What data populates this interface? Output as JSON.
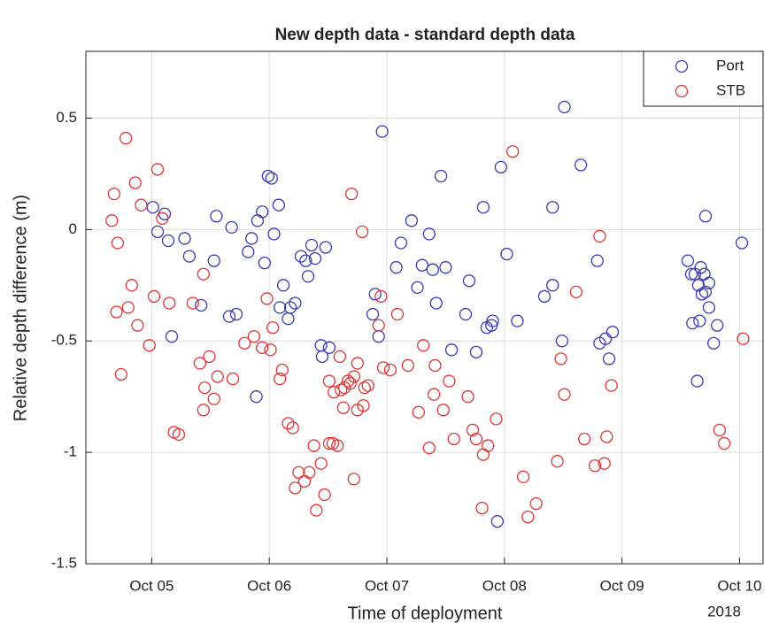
{
  "chart_data": {
    "type": "scatter",
    "title": "New depth data - standard depth data",
    "xlabel": "Time of deployment",
    "ylabel": "Relative depth difference (m)",
    "x_year_label": "2018",
    "xlim": [
      4.44,
      10.2
    ],
    "ylim": [
      -1.5,
      0.8
    ],
    "xticks": [
      {
        "value": 5,
        "label": "Oct 05"
      },
      {
        "value": 6,
        "label": "Oct 06"
      },
      {
        "value": 7,
        "label": "Oct 07"
      },
      {
        "value": 8,
        "label": "Oct 08"
      },
      {
        "value": 9,
        "label": "Oct 09"
      },
      {
        "value": 10,
        "label": "Oct 10"
      }
    ],
    "yticks": [
      0.5,
      0,
      -0.5,
      -1,
      -1.5
    ],
    "grid": true,
    "legend": "northeast",
    "marker": "open-circle",
    "series": [
      {
        "name": "Port",
        "color": "#3a3ab4",
        "x": [
          5.01,
          5.11,
          5.05,
          5.14,
          5.28,
          5.32,
          5.17,
          5.42,
          5.53,
          5.55,
          5.68,
          5.66,
          5.72,
          5.82,
          5.85,
          5.9,
          5.94,
          5.96,
          5.99,
          6.02,
          6.04,
          6.08,
          6.12,
          6.09,
          6.16,
          6.18,
          6.22,
          6.27,
          6.31,
          6.36,
          6.33,
          6.39,
          6.44,
          6.45,
          6.51,
          6.48,
          6.9,
          6.88,
          6.93,
          6.96,
          7.08,
          7.12,
          7.21,
          7.26,
          7.3,
          7.36,
          7.39,
          7.42,
          7.46,
          7.5,
          7.55,
          7.7,
          7.67,
          7.76,
          7.82,
          7.85,
          7.89,
          7.9,
          7.97,
          8.02,
          8.11,
          7.94,
          8.41,
          8.41,
          8.49,
          8.51,
          8.34,
          8.65,
          8.79,
          8.81,
          8.86,
          8.89,
          8.92,
          9.56,
          9.59,
          9.62,
          9.67,
          9.7,
          9.65,
          9.68,
          9.71,
          9.74,
          9.74,
          9.71,
          9.6,
          9.66,
          9.81,
          9.78,
          9.64,
          10.02,
          5.89
        ],
        "values": [
          0.1,
          0.07,
          -0.01,
          -0.05,
          -0.04,
          -0.12,
          -0.48,
          -0.34,
          -0.14,
          0.06,
          0.01,
          -0.39,
          -0.38,
          -0.1,
          -0.04,
          0.04,
          0.08,
          -0.15,
          0.24,
          0.23,
          -0.02,
          0.11,
          -0.25,
          -0.35,
          -0.4,
          -0.35,
          -0.33,
          -0.12,
          -0.14,
          -0.07,
          -0.21,
          -0.13,
          -0.52,
          -0.57,
          -0.53,
          -0.08,
          -0.29,
          -0.38,
          -0.48,
          0.44,
          -0.17,
          -0.06,
          0.04,
          -0.26,
          -0.16,
          -0.02,
          -0.18,
          -0.33,
          0.24,
          -0.17,
          -0.54,
          -0.23,
          -0.38,
          -0.55,
          0.1,
          -0.44,
          -0.43,
          -0.41,
          0.28,
          -0.11,
          -0.41,
          -1.31,
          0.1,
          -0.25,
          -0.5,
          0.55,
          -0.3,
          0.29,
          -0.14,
          -0.51,
          -0.49,
          -0.58,
          -0.46,
          -0.14,
          -0.2,
          -0.2,
          -0.17,
          -0.2,
          -0.25,
          -0.29,
          -0.28,
          -0.24,
          -0.35,
          0.06,
          -0.42,
          -0.41,
          -0.43,
          -0.51,
          -0.68,
          -0.06,
          -0.75
        ]
      },
      {
        "name": "STB",
        "color": "#e03434",
        "x": [
          4.68,
          4.66,
          4.71,
          4.78,
          4.86,
          4.91,
          4.83,
          4.7,
          4.8,
          4.88,
          4.74,
          4.98,
          5.02,
          5.05,
          5.09,
          5.15,
          5.19,
          5.23,
          5.35,
          5.44,
          5.49,
          5.41,
          5.45,
          5.44,
          5.53,
          5.56,
          5.69,
          5.79,
          5.87,
          5.94,
          5.98,
          6.01,
          6.03,
          6.09,
          6.11,
          6.16,
          6.2,
          6.22,
          6.25,
          6.3,
          6.34,
          6.38,
          6.4,
          6.44,
          6.47,
          6.51,
          6.54,
          6.58,
          6.6,
          6.51,
          6.55,
          6.61,
          6.63,
          6.64,
          6.67,
          6.69,
          6.72,
          6.75,
          6.75,
          6.8,
          6.81,
          6.84,
          6.7,
          6.79,
          6.72,
          6.93,
          6.95,
          6.97,
          7.03,
          7.09,
          7.18,
          7.27,
          7.31,
          7.36,
          7.41,
          7.4,
          7.48,
          7.53,
          7.57,
          7.69,
          7.73,
          7.76,
          7.82,
          7.86,
          7.81,
          7.93,
          8.07,
          8.16,
          8.27,
          8.2,
          8.48,
          8.51,
          8.61,
          8.68,
          8.81,
          8.77,
          8.85,
          8.87,
          8.91,
          9.83,
          9.87,
          10.03,
          8.45
        ],
        "values": [
          0.16,
          0.04,
          -0.06,
          0.41,
          0.21,
          0.11,
          -0.25,
          -0.37,
          -0.35,
          -0.43,
          -0.65,
          -0.52,
          -0.3,
          0.27,
          0.05,
          -0.33,
          -0.91,
          -0.92,
          -0.33,
          -0.2,
          -0.57,
          -0.6,
          -0.71,
          -0.81,
          -0.76,
          -0.66,
          -0.67,
          -0.51,
          -0.48,
          -0.53,
          -0.31,
          -0.54,
          -0.44,
          -0.67,
          -0.63,
          -0.87,
          -0.89,
          -1.16,
          -1.09,
          -1.13,
          -1.09,
          -0.97,
          -1.26,
          -1.05,
          -1.19,
          -0.96,
          -0.96,
          -0.97,
          -0.57,
          -0.68,
          -0.73,
          -0.72,
          -0.8,
          -0.71,
          -0.68,
          -0.69,
          -0.66,
          -0.81,
          -0.6,
          -0.79,
          -0.71,
          -0.7,
          0.16,
          -0.01,
          -1.12,
          -0.43,
          -0.3,
          -0.62,
          -0.63,
          -0.38,
          -0.61,
          -0.82,
          -0.52,
          -0.98,
          -0.61,
          -0.74,
          -0.81,
          -0.68,
          -0.94,
          -0.75,
          -0.9,
          -0.94,
          -1.01,
          -0.97,
          -1.25,
          -0.85,
          0.35,
          -1.11,
          -1.23,
          -1.29,
          -0.58,
          -0.74,
          -0.28,
          -0.94,
          -0.03,
          -1.06,
          -1.05,
          -0.93,
          -0.7,
          -0.9,
          -0.96,
          -0.49,
          -1.04
        ]
      }
    ]
  }
}
